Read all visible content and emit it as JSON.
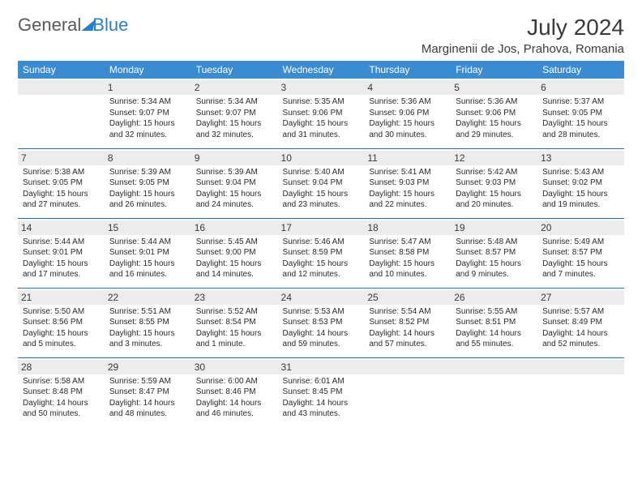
{
  "brand": {
    "part1": "General",
    "part2": "Blue"
  },
  "title": "July 2024",
  "location": "Marginenii de Jos, Prahova, Romania",
  "day_headers": [
    "Sunday",
    "Monday",
    "Tuesday",
    "Wednesday",
    "Thursday",
    "Friday",
    "Saturday"
  ],
  "colors": {
    "header_bg": "#3b8bd0",
    "header_text": "#ffffff",
    "sep_line": "#2a6fa8",
    "daynum_bg": "#ececec",
    "text": "#2a2a2a",
    "brand_gray": "#5a5a5a",
    "brand_blue": "#2a7fc9"
  },
  "weeks": [
    [
      {},
      {
        "n": "1",
        "sr": "5:34 AM",
        "ss": "9:07 PM",
        "dl": "15 hours and 32 minutes."
      },
      {
        "n": "2",
        "sr": "5:34 AM",
        "ss": "9:07 PM",
        "dl": "15 hours and 32 minutes."
      },
      {
        "n": "3",
        "sr": "5:35 AM",
        "ss": "9:06 PM",
        "dl": "15 hours and 31 minutes."
      },
      {
        "n": "4",
        "sr": "5:36 AM",
        "ss": "9:06 PM",
        "dl": "15 hours and 30 minutes."
      },
      {
        "n": "5",
        "sr": "5:36 AM",
        "ss": "9:06 PM",
        "dl": "15 hours and 29 minutes."
      },
      {
        "n": "6",
        "sr": "5:37 AM",
        "ss": "9:05 PM",
        "dl": "15 hours and 28 minutes."
      }
    ],
    [
      {
        "n": "7",
        "sr": "5:38 AM",
        "ss": "9:05 PM",
        "dl": "15 hours and 27 minutes."
      },
      {
        "n": "8",
        "sr": "5:39 AM",
        "ss": "9:05 PM",
        "dl": "15 hours and 26 minutes."
      },
      {
        "n": "9",
        "sr": "5:39 AM",
        "ss": "9:04 PM",
        "dl": "15 hours and 24 minutes."
      },
      {
        "n": "10",
        "sr": "5:40 AM",
        "ss": "9:04 PM",
        "dl": "15 hours and 23 minutes."
      },
      {
        "n": "11",
        "sr": "5:41 AM",
        "ss": "9:03 PM",
        "dl": "15 hours and 22 minutes."
      },
      {
        "n": "12",
        "sr": "5:42 AM",
        "ss": "9:03 PM",
        "dl": "15 hours and 20 minutes."
      },
      {
        "n": "13",
        "sr": "5:43 AM",
        "ss": "9:02 PM",
        "dl": "15 hours and 19 minutes."
      }
    ],
    [
      {
        "n": "14",
        "sr": "5:44 AM",
        "ss": "9:01 PM",
        "dl": "15 hours and 17 minutes."
      },
      {
        "n": "15",
        "sr": "5:44 AM",
        "ss": "9:01 PM",
        "dl": "15 hours and 16 minutes."
      },
      {
        "n": "16",
        "sr": "5:45 AM",
        "ss": "9:00 PM",
        "dl": "15 hours and 14 minutes."
      },
      {
        "n": "17",
        "sr": "5:46 AM",
        "ss": "8:59 PM",
        "dl": "15 hours and 12 minutes."
      },
      {
        "n": "18",
        "sr": "5:47 AM",
        "ss": "8:58 PM",
        "dl": "15 hours and 10 minutes."
      },
      {
        "n": "19",
        "sr": "5:48 AM",
        "ss": "8:57 PM",
        "dl": "15 hours and 9 minutes."
      },
      {
        "n": "20",
        "sr": "5:49 AM",
        "ss": "8:57 PM",
        "dl": "15 hours and 7 minutes."
      }
    ],
    [
      {
        "n": "21",
        "sr": "5:50 AM",
        "ss": "8:56 PM",
        "dl": "15 hours and 5 minutes."
      },
      {
        "n": "22",
        "sr": "5:51 AM",
        "ss": "8:55 PM",
        "dl": "15 hours and 3 minutes."
      },
      {
        "n": "23",
        "sr": "5:52 AM",
        "ss": "8:54 PM",
        "dl": "15 hours and 1 minute."
      },
      {
        "n": "24",
        "sr": "5:53 AM",
        "ss": "8:53 PM",
        "dl": "14 hours and 59 minutes."
      },
      {
        "n": "25",
        "sr": "5:54 AM",
        "ss": "8:52 PM",
        "dl": "14 hours and 57 minutes."
      },
      {
        "n": "26",
        "sr": "5:55 AM",
        "ss": "8:51 PM",
        "dl": "14 hours and 55 minutes."
      },
      {
        "n": "27",
        "sr": "5:57 AM",
        "ss": "8:49 PM",
        "dl": "14 hours and 52 minutes."
      }
    ],
    [
      {
        "n": "28",
        "sr": "5:58 AM",
        "ss": "8:48 PM",
        "dl": "14 hours and 50 minutes."
      },
      {
        "n": "29",
        "sr": "5:59 AM",
        "ss": "8:47 PM",
        "dl": "14 hours and 48 minutes."
      },
      {
        "n": "30",
        "sr": "6:00 AM",
        "ss": "8:46 PM",
        "dl": "14 hours and 46 minutes."
      },
      {
        "n": "31",
        "sr": "6:01 AM",
        "ss": "8:45 PM",
        "dl": "14 hours and 43 minutes."
      },
      {},
      {},
      {}
    ]
  ],
  "labels": {
    "sunrise": "Sunrise: ",
    "sunset": "Sunset: ",
    "daylight": "Daylight: "
  }
}
